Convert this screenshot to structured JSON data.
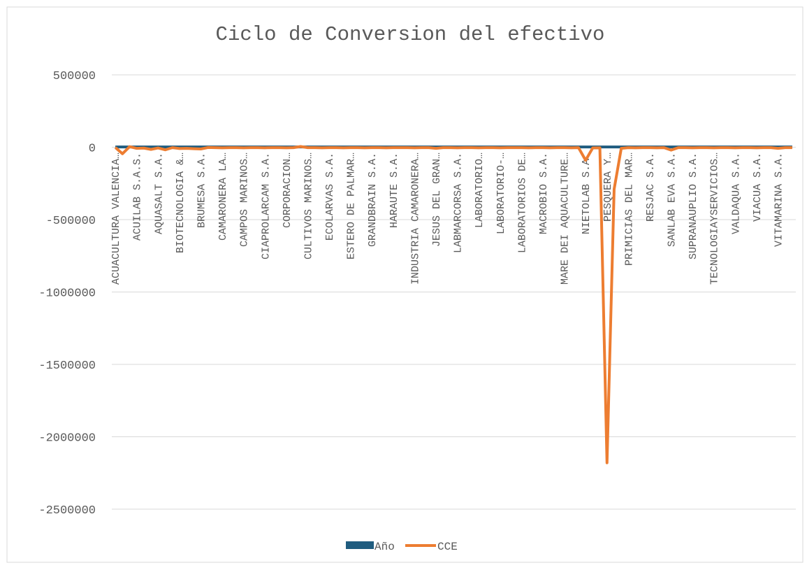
{
  "chart_data": {
    "type": "line",
    "title": "Ciclo de Conversion del efectivo",
    "categories": [
      "ACUACULTURA VALENCIA…",
      null,
      null,
      "ACUILAB S.A.S.",
      null,
      null,
      "AQUASALT S.A.",
      null,
      null,
      "BIOTECNOLOGIA &…",
      null,
      null,
      "BRUMESA S.A.",
      null,
      null,
      "CAMARONERA LA…",
      null,
      null,
      "CAMPOS MARINOS…",
      null,
      null,
      "CIAPROLARCAM S.A.",
      null,
      null,
      "CORPORACION…",
      null,
      null,
      "CULTIVOS MARINOS…",
      null,
      null,
      "ECOLARVAS S.A.",
      null,
      null,
      "ESTERO DE PALMAR…",
      null,
      null,
      "GRANDBRAIN S.A.",
      null,
      null,
      "HARAUTE S.A.",
      null,
      null,
      "INDUSTRIA CAMARONERA…",
      null,
      null,
      "JESUS DEL GRAN…",
      null,
      null,
      "LABMARCORSA S.A.",
      null,
      null,
      "LABORATORIO…",
      null,
      null,
      "LABORATORIO-…",
      null,
      null,
      "LABORATORIOS DE…",
      null,
      null,
      "MACROBIO S.A.",
      null,
      null,
      "MARE DEI AQUACULTURE…",
      null,
      null,
      "NIETOLAB S.A.",
      null,
      null,
      "PESQUERA Y…",
      null,
      null,
      "PRIMICIAS DEL MAR…",
      null,
      null,
      "RESJAC S.A.",
      null,
      null,
      "SANLAB EVA S.A.",
      null,
      null,
      "SUPRANAUPLIO S.A.",
      null,
      null,
      "TECNOLOGIAYSERVICIOS…",
      null,
      null,
      "VALDAQUA S.A.",
      null,
      null,
      "VIACUA S.A.",
      null,
      null,
      "VITAMARINA S.A.",
      null,
      null
    ],
    "series": [
      {
        "name": "Año",
        "color": "#1f5c7f",
        "values": [
          2021,
          2021,
          2021,
          2021,
          2021,
          2021,
          2021,
          2021,
          2021,
          2021,
          2021,
          2021,
          2021,
          2021,
          2021,
          2021,
          2021,
          2021,
          2021,
          2021,
          2021,
          2021,
          2021,
          2021,
          2021,
          2021,
          2021,
          2021,
          2021,
          2021,
          2021,
          2021,
          2021,
          2021,
          2021,
          2021,
          2021,
          2021,
          2021,
          2021,
          2021,
          2021,
          2021,
          2021,
          2021,
          2021,
          2021,
          2021,
          2021,
          2021,
          2021,
          2021,
          2021,
          2021,
          2021,
          2021,
          2021,
          2021,
          2021,
          2021,
          2021,
          2021,
          2021,
          2021,
          2021,
          2021,
          2021,
          2021,
          2021,
          2021,
          2021,
          2021,
          2021,
          2021,
          2021,
          2021,
          2021,
          2021,
          2021,
          2021,
          2021,
          2021,
          2021,
          2021,
          2021,
          2021,
          2021,
          2021,
          2021,
          2021,
          2021,
          2021,
          2021,
          2021,
          2021,
          2021
        ]
      },
      {
        "name": "CCE",
        "color": "#ed7d31",
        "values": [
          -2000,
          -45000,
          4000,
          -8000,
          -6000,
          -15000,
          -5000,
          -18000,
          -3000,
          -9000,
          -8000,
          -10000,
          -12000,
          -2000,
          -3000,
          -4000,
          -3000,
          -3000,
          -4000,
          -3000,
          -3000,
          -4000,
          -3000,
          -3000,
          -4000,
          -3000,
          5000,
          -3000,
          -3000,
          -4000,
          -3000,
          -3000,
          -4000,
          -3000,
          -3000,
          -4000,
          -3000,
          -3000,
          -4000,
          -3000,
          -3000,
          -3000,
          -4000,
          -3000,
          -3000,
          -8000,
          -3000,
          -3000,
          -4000,
          -3000,
          -3000,
          -4000,
          -3000,
          -3000,
          -4000,
          -3000,
          -3000,
          -3000,
          -4000,
          -3000,
          -3000,
          -4000,
          -3000,
          -3000,
          -4000,
          -3000,
          -90000,
          -5000,
          -4000,
          -2180000,
          -290000,
          -8000,
          -3000,
          -4000,
          -3000,
          -3000,
          -4000,
          -3000,
          -20000,
          -3000,
          -3000,
          -4000,
          -3000,
          -3000,
          -4000,
          -3000,
          -3000,
          -4000,
          -3000,
          -3000,
          -4000,
          -3000,
          -3000,
          -8000,
          -3000,
          -3000
        ]
      }
    ],
    "ylim": [
      -2500000,
      500000
    ],
    "yticks": [
      -2500000,
      -2000000,
      -1500000,
      -1000000,
      -500000,
      0,
      500000
    ],
    "grid": true,
    "legend": "bottom"
  }
}
